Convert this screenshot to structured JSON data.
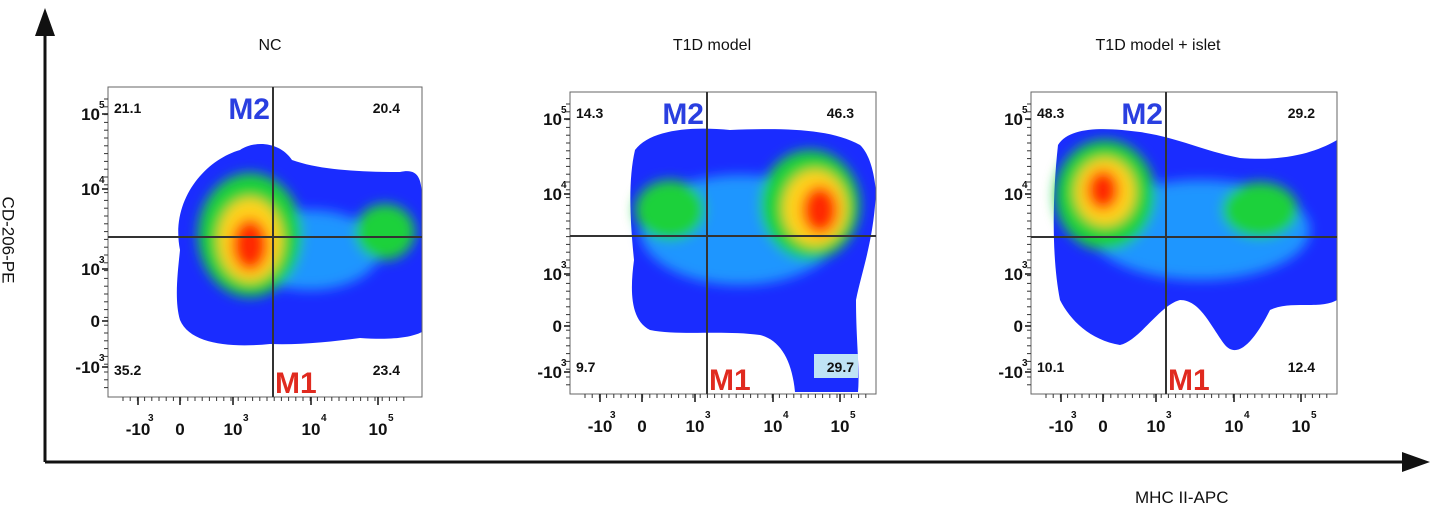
{
  "chart_data": {
    "type": "heatmap",
    "xlabel": "MHC II-APC",
    "ylabel": "CD-206-PE",
    "panels": [
      {
        "title": "NC",
        "quadrants": {
          "upper_left": "21.1",
          "upper_right": "20.4",
          "lower_left": "35.2",
          "lower_right": "23.4"
        },
        "labels": {
          "upper": "M2",
          "lower": "M1"
        },
        "x_ticks": [
          "-10",
          "0",
          "10",
          "10",
          "10"
        ],
        "x_tick_exps": [
          "3",
          "",
          "3",
          "4",
          "5"
        ],
        "y_ticks": [
          "10",
          "10",
          "10",
          "0",
          "-10"
        ],
        "y_tick_exps": [
          "5",
          "4",
          "3",
          "",
          "3"
        ]
      },
      {
        "title": "T1D model",
        "quadrants": {
          "upper_left": "14.3",
          "upper_right": "46.3",
          "lower_left": "9.7",
          "lower_right": "29.7"
        },
        "labels": {
          "upper": "M2",
          "lower": "M1"
        },
        "x_ticks": [
          "-10",
          "0",
          "10",
          "10",
          "10"
        ],
        "x_tick_exps": [
          "3",
          "",
          "3",
          "4",
          "5"
        ],
        "y_ticks": [
          "10",
          "10",
          "10",
          "0",
          "-10"
        ],
        "y_tick_exps": [
          "5",
          "4",
          "3",
          "",
          "3"
        ]
      },
      {
        "title": "T1D model + islet",
        "quadrants": {
          "upper_left": "48.3",
          "upper_right": "29.2",
          "lower_left": "10.1",
          "lower_right": "12.4"
        },
        "labels": {
          "upper": "M2",
          "lower": "M1"
        },
        "x_ticks": [
          "-10",
          "0",
          "10",
          "10",
          "10"
        ],
        "x_tick_exps": [
          "3",
          "",
          "3",
          "4",
          "5"
        ],
        "y_ticks": [
          "10",
          "10",
          "10",
          "0",
          "-10"
        ],
        "y_tick_exps": [
          "5",
          "4",
          "3",
          "",
          "3"
        ]
      }
    ]
  },
  "colors": {
    "m2_label": "#2a3fe0",
    "m1_label": "#e02a1f",
    "density_low": "#1a2cff",
    "density_mid": "#1fd13a",
    "density_high": "#ff2a00"
  }
}
